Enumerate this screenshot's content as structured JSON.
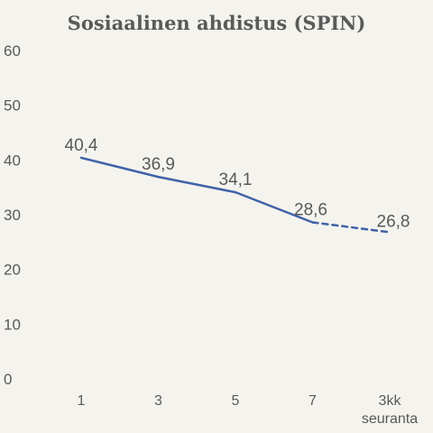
{
  "chart_data": {
    "type": "line",
    "title": "Sosiaalinen ahdistus (SPIN)",
    "categories": [
      "1",
      "3",
      "5",
      "7",
      [
        "3kk",
        "seuranta"
      ]
    ],
    "series": [
      {
        "values": [
          40.4,
          36.9,
          34.1,
          28.6,
          26.8
        ],
        "data_labels": [
          "40,4",
          "36,9",
          "34,1",
          "28,6",
          "26,8"
        ],
        "color": "#3f62a8",
        "dashed_last_segment": true
      }
    ],
    "ylim": [
      0,
      60
    ],
    "y_ticks": [
      0,
      10,
      20,
      30,
      40,
      50,
      60
    ],
    "grid": false,
    "legend": "none"
  },
  "colors": {
    "background": "#f4f3ee",
    "line": "#3f62a8",
    "text": "#595959",
    "title": "#5a5a5a"
  }
}
